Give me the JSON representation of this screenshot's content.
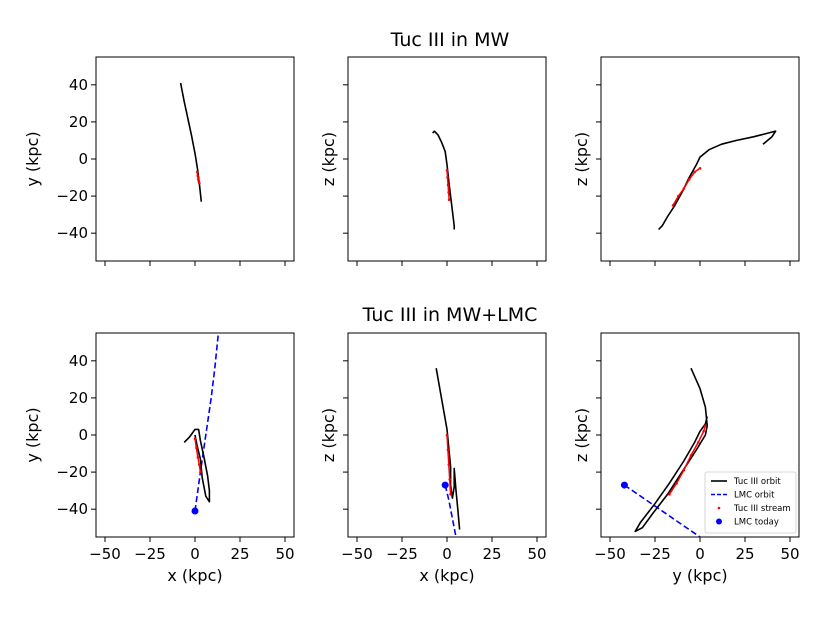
{
  "colors": {
    "orbit": "#000000",
    "lmc": "#0000ff",
    "stream": "#ff0000"
  },
  "chart_data": {
    "type": "line",
    "row_titles": [
      "Tuc III in MW",
      "Tuc III in MW+LMC"
    ],
    "ticks": {
      "x": [
        -50,
        -25,
        0,
        25,
        50
      ],
      "x_labels": [
        "−50",
        "−25",
        "0",
        "25",
        "50"
      ],
      "y": [
        -40,
        -20,
        0,
        20,
        40
      ],
      "y_labels": [
        "−40",
        "−20",
        "0",
        "20",
        "40"
      ]
    },
    "legend": {
      "location": "lower-right",
      "entries": [
        "Tuc III orbit",
        "LMC orbit",
        "Tuc III stream",
        "LMC today"
      ]
    },
    "panels": [
      {
        "id": "mw-xy",
        "row": 0,
        "col": 0,
        "xlabel": "",
        "ylabel": "y (kpc)",
        "xlim": [
          -55,
          55
        ],
        "ylim": [
          -55,
          55
        ],
        "orbit": [
          [
            -8,
            41
          ],
          [
            -6,
            31
          ],
          [
            -4,
            22
          ],
          [
            -2,
            13
          ],
          [
            0,
            3
          ],
          [
            1.5,
            -6
          ],
          [
            2.5,
            -14
          ],
          [
            3.5,
            -23
          ]
        ],
        "stream": [
          [
            1.2,
            -7
          ],
          [
            1.5,
            -9
          ],
          [
            1.8,
            -11
          ],
          [
            2.1,
            -12
          ],
          [
            2.4,
            -13
          ]
        ]
      },
      {
        "id": "mw-xz",
        "row": 0,
        "col": 1,
        "xlabel": "",
        "ylabel": "z (kpc)",
        "xlim": [
          -55,
          55
        ],
        "ylim": [
          -55,
          55
        ],
        "orbit": [
          [
            -8,
            14
          ],
          [
            -7,
            15
          ],
          [
            -5,
            13
          ],
          [
            -3,
            9
          ],
          [
            -1,
            4
          ],
          [
            0,
            -3
          ],
          [
            1,
            -12
          ],
          [
            2,
            -20
          ],
          [
            3,
            -28
          ],
          [
            4,
            -36
          ],
          [
            4,
            -38
          ]
        ],
        "stream": [
          [
            0,
            -6
          ],
          [
            0.3,
            -10
          ],
          [
            0.6,
            -14
          ],
          [
            0.9,
            -18
          ],
          [
            1.2,
            -22
          ]
        ]
      },
      {
        "id": "mw-yz",
        "row": 0,
        "col": 2,
        "xlabel": "",
        "ylabel": "z (kpc)",
        "xlim": [
          -55,
          55
        ],
        "ylim": [
          -55,
          55
        ],
        "orbit": [
          [
            -23,
            -38
          ],
          [
            -21,
            -36
          ],
          [
            -18,
            -31
          ],
          [
            -14,
            -25
          ],
          [
            -10,
            -18
          ],
          [
            -6,
            -10
          ],
          [
            -2,
            -3
          ],
          [
            0,
            1
          ],
          [
            5,
            5
          ],
          [
            12,
            8
          ],
          [
            20,
            10
          ],
          [
            30,
            12
          ],
          [
            38,
            14
          ],
          [
            42,
            15
          ],
          [
            40,
            12
          ],
          [
            35,
            8
          ]
        ],
        "stream": [
          [
            -15,
            -25
          ],
          [
            -12,
            -20
          ],
          [
            -9,
            -16
          ],
          [
            -6,
            -11
          ],
          [
            -3,
            -7
          ],
          [
            0,
            -5
          ]
        ]
      },
      {
        "id": "lmc-xy",
        "row": 1,
        "col": 0,
        "xlabel": "x (kpc)",
        "ylabel": "y (kpc)",
        "xlim": [
          -55,
          55
        ],
        "ylim": [
          -55,
          55
        ],
        "orbit": [
          [
            -6,
            -4
          ],
          [
            -3,
            -1
          ],
          [
            0,
            3
          ],
          [
            2,
            3
          ],
          [
            3,
            -3
          ],
          [
            5,
            -12
          ],
          [
            7,
            -22
          ],
          [
            8,
            -30
          ],
          [
            8,
            -36
          ],
          [
            6,
            -33
          ],
          [
            4,
            -23
          ],
          [
            3,
            -13
          ],
          [
            1,
            -5
          ],
          [
            0,
            0
          ]
        ],
        "stream": [
          [
            0,
            -2
          ],
          [
            0.8,
            -7
          ],
          [
            1.6,
            -12
          ],
          [
            2.4,
            -16
          ],
          [
            3,
            -20
          ]
        ],
        "lmc_orbit": [
          [
            0,
            -41
          ],
          [
            3,
            -20
          ],
          [
            6,
            0
          ],
          [
            9,
            20
          ],
          [
            11,
            36
          ],
          [
            13,
            55
          ]
        ],
        "lmc_today": [
          0,
          -41
        ]
      },
      {
        "id": "lmc-xz",
        "row": 1,
        "col": 1,
        "xlabel": "x (kpc)",
        "ylabel": "z (kpc)",
        "xlim": [
          -55,
          55
        ],
        "ylim": [
          -55,
          55
        ],
        "orbit": [
          [
            -6,
            36
          ],
          [
            -4,
            25
          ],
          [
            -2,
            14
          ],
          [
            0,
            3
          ],
          [
            1,
            -7
          ],
          [
            2,
            -17
          ],
          [
            2,
            -27
          ],
          [
            3,
            -34
          ],
          [
            4,
            -28
          ],
          [
            4,
            -18
          ],
          [
            5,
            -30
          ],
          [
            6,
            -40
          ],
          [
            7,
            -51
          ]
        ],
        "stream": [
          [
            0,
            0
          ],
          [
            0.5,
            -8
          ],
          [
            1,
            -16
          ],
          [
            1.5,
            -24
          ],
          [
            2,
            -32
          ]
        ],
        "lmc_orbit": [
          [
            -1,
            -27
          ],
          [
            1,
            -35
          ],
          [
            3,
            -45
          ],
          [
            5,
            -55
          ]
        ],
        "lmc_today": [
          -1,
          -27
        ]
      },
      {
        "id": "lmc-yz",
        "row": 1,
        "col": 2,
        "xlabel": "y (kpc)",
        "ylabel": "z (kpc)",
        "xlim": [
          -55,
          55
        ],
        "ylim": [
          -55,
          55
        ],
        "orbit": [
          [
            -5,
            36
          ],
          [
            0,
            25
          ],
          [
            3,
            15
          ],
          [
            4,
            5
          ],
          [
            3,
            0
          ],
          [
            -2,
            -8
          ],
          [
            -10,
            -20
          ],
          [
            -18,
            -32
          ],
          [
            -26,
            -42
          ],
          [
            -32,
            -50
          ],
          [
            -36,
            -52
          ],
          [
            -33,
            -47
          ],
          [
            -25,
            -37
          ],
          [
            -17,
            -26
          ],
          [
            -9,
            -14
          ],
          [
            -3,
            -4
          ],
          [
            0,
            2
          ],
          [
            3,
            6
          ],
          [
            4,
            10
          ]
        ],
        "stream": [
          [
            -17,
            -32
          ],
          [
            -13,
            -26
          ],
          [
            -9,
            -19
          ],
          [
            -5,
            -11
          ],
          [
            -1,
            -4
          ],
          [
            2,
            2
          ],
          [
            3,
            5
          ]
        ],
        "lmc_orbit": [
          [
            -42,
            -27
          ],
          [
            -30,
            -35
          ],
          [
            -18,
            -43
          ],
          [
            -6,
            -51
          ],
          [
            0,
            -55
          ]
        ],
        "lmc_today": [
          -42,
          -27
        ]
      }
    ]
  }
}
